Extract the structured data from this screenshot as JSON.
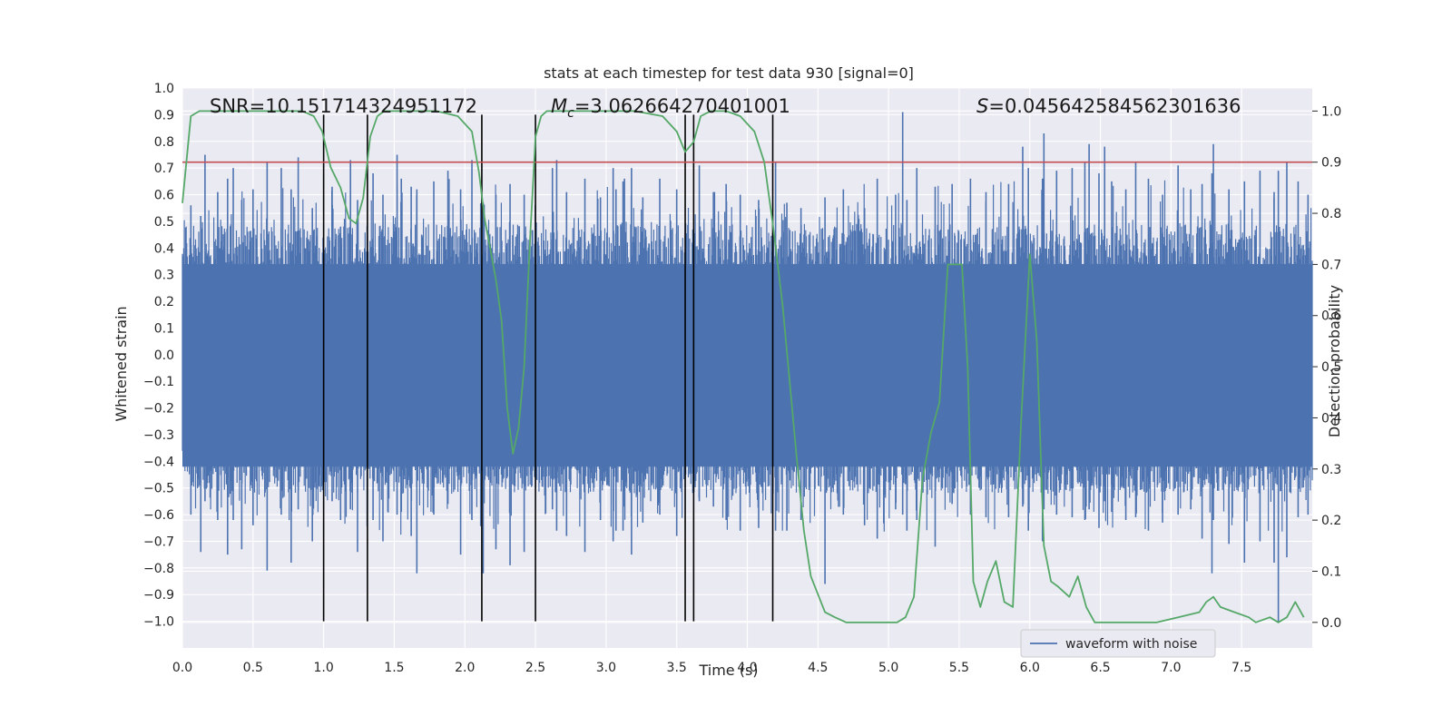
{
  "chart_data": {
    "type": "line",
    "title": "stats at each timestep for test data 930 [signal=0]",
    "xlabel": "Time (s)",
    "ylabel": "Whitened strain",
    "y2label": "Detection probability",
    "xlim": [
      0,
      8
    ],
    "ylim": [
      -1.1,
      1.0
    ],
    "y2lim": [
      -0.05,
      1.045
    ],
    "xticks": [
      "0.0",
      "0.5",
      "1.0",
      "1.5",
      "2.0",
      "2.5",
      "3.0",
      "3.5",
      "4.0",
      "4.5",
      "5.0",
      "5.5",
      "6.0",
      "6.5",
      "7.0",
      "7.5"
    ],
    "yticks": [
      "1.0",
      "0.9",
      "0.8",
      "0.7",
      "0.6",
      "0.5",
      "0.4",
      "0.3",
      "0.2",
      "0.1",
      "0.0",
      "−0.1",
      "−0.2",
      "−0.3",
      "−0.4",
      "−0.5",
      "−0.6",
      "−0.7",
      "−0.8",
      "−0.9",
      "−1.0"
    ],
    "y2ticks": [
      "0.0",
      "0.1",
      "0.2",
      "0.3",
      "0.4",
      "0.5",
      "0.6",
      "0.7",
      "0.8",
      "0.9",
      "1.0"
    ],
    "annotations": {
      "snr": "SNR=10.151714324951172",
      "mc_symbol": "M",
      "mc_sub": "c",
      "mc_value": "=3.062664270401001",
      "s_symbol": "S",
      "s_value": "=0.045642584562301636"
    },
    "threshold": 0.9,
    "vlines": [
      1.0,
      1.31,
      2.12,
      2.5,
      3.56,
      3.62,
      4.18
    ],
    "vline_range": [
      -1.0,
      0.9
    ],
    "series": [
      {
        "name": "waveform with noise",
        "axis": "left",
        "color": "#4c72b0",
        "spikes": [
          [
            0.06,
            0.56,
            -0.6
          ],
          [
            0.13,
            0.52,
            -0.74
          ],
          [
            0.16,
            0.75,
            -0.55
          ],
          [
            0.25,
            0.61,
            -0.62
          ],
          [
            0.32,
            0.66,
            -0.75
          ],
          [
            0.42,
            0.58,
            -0.73
          ],
          [
            0.5,
            0.62,
            -0.64
          ],
          [
            0.6,
            0.72,
            -0.81
          ],
          [
            0.7,
            0.7,
            -0.6
          ],
          [
            0.77,
            0.62,
            -0.78
          ],
          [
            0.82,
            0.74,
            -0.58
          ],
          [
            0.92,
            0.55,
            -0.7
          ],
          [
            1.06,
            0.63,
            -0.55
          ],
          [
            1.12,
            0.48,
            -0.62
          ],
          [
            1.19,
            0.73,
            -0.58
          ],
          [
            1.24,
            0.58,
            -0.74
          ],
          [
            1.35,
            0.68,
            -0.62
          ],
          [
            1.42,
            0.6,
            -0.7
          ],
          [
            1.55,
            0.66,
            -0.59
          ],
          [
            1.62,
            0.63,
            -0.68
          ],
          [
            1.66,
            0.62,
            -0.82
          ],
          [
            1.78,
            0.65,
            -0.6
          ],
          [
            1.88,
            0.69,
            -0.56
          ],
          [
            1.97,
            0.62,
            -0.75
          ],
          [
            2.05,
            0.73,
            -0.62
          ],
          [
            2.13,
            0.57,
            -0.82
          ],
          [
            2.22,
            0.6,
            -0.73
          ],
          [
            2.32,
            0.64,
            -0.79
          ],
          [
            2.42,
            0.6,
            -0.74
          ],
          [
            2.62,
            0.7,
            -0.58
          ],
          [
            2.72,
            0.61,
            -0.68
          ],
          [
            2.85,
            0.66,
            -0.74
          ],
          [
            2.96,
            0.59,
            -0.62
          ],
          [
            3.07,
            0.62,
            -0.66
          ],
          [
            3.18,
            0.7,
            -0.75
          ],
          [
            3.26,
            0.59,
            -0.63
          ],
          [
            3.38,
            0.66,
            -0.6
          ],
          [
            3.5,
            0.62,
            -0.68
          ],
          [
            3.66,
            0.71,
            -0.55
          ],
          [
            3.76,
            0.61,
            -0.57
          ],
          [
            3.85,
            0.64,
            -0.62
          ],
          [
            3.95,
            0.6,
            -0.66
          ],
          [
            4.08,
            0.58,
            -0.65
          ],
          [
            4.28,
            0.57,
            -0.66
          ],
          [
            4.38,
            0.55,
            -0.62
          ],
          [
            4.55,
            0.59,
            -0.86
          ],
          [
            4.68,
            0.62,
            -0.6
          ],
          [
            4.83,
            0.55,
            -0.64
          ],
          [
            4.92,
            0.66,
            -0.69
          ],
          [
            5.05,
            0.6,
            -0.58
          ],
          [
            5.13,
            0.58,
            -0.66
          ],
          [
            5.2,
            0.7,
            -0.62
          ],
          [
            5.33,
            0.63,
            -0.72
          ],
          [
            5.45,
            0.64,
            -0.56
          ],
          [
            5.58,
            0.66,
            -0.6
          ],
          [
            5.69,
            0.61,
            -0.61
          ],
          [
            5.85,
            0.64,
            -0.61
          ],
          [
            5.99,
            0.7,
            -0.66
          ],
          [
            6.09,
            0.66,
            -0.7
          ],
          [
            6.19,
            0.69,
            -0.6
          ],
          [
            6.3,
            0.7,
            -0.61
          ],
          [
            6.39,
            0.72,
            -0.62
          ],
          [
            6.49,
            0.68,
            -0.65
          ],
          [
            6.58,
            0.65,
            -0.59
          ],
          [
            6.68,
            0.62,
            -0.62
          ],
          [
            6.84,
            0.66,
            -0.66
          ],
          [
            6.94,
            0.6,
            -0.63
          ],
          [
            7.05,
            0.71,
            -0.6
          ],
          [
            7.14,
            0.62,
            -0.58
          ],
          [
            7.22,
            0.64,
            -0.69
          ],
          [
            7.29,
            0.68,
            -0.82
          ],
          [
            7.41,
            0.62,
            -0.71
          ],
          [
            7.52,
            0.65,
            -0.78
          ],
          [
            7.63,
            0.69,
            -0.7
          ],
          [
            7.73,
            0.61,
            -0.78
          ],
          [
            7.76,
            0.69,
            -1.0
          ],
          [
            7.82,
            0.72,
            -0.76
          ],
          [
            7.9,
            0.65,
            -0.61
          ],
          [
            7.97,
            0.6,
            -0.6
          ],
          [
            3.13,
            0.66,
            -0.57
          ],
          [
            3.05,
            0.7,
            -0.7
          ],
          [
            3.12,
            0.65,
            -0.66
          ],
          [
            5.1,
            0.91,
            -0.6
          ],
          [
            6.1,
            0.83,
            -0.58
          ],
          [
            7.3,
            0.79,
            -0.62
          ],
          [
            5.95,
            0.78,
            -0.57
          ],
          [
            6.42,
            0.79,
            -0.58
          ],
          [
            6.53,
            0.78,
            -0.55
          ],
          [
            4.2,
            0.72,
            -0.66
          ],
          [
            2.65,
            0.73,
            -0.66
          ],
          [
            1.52,
            0.75,
            -0.6
          ],
          [
            0.36,
            0.7,
            -0.62
          ],
          [
            6.75,
            0.72,
            -0.61
          ]
        ]
      },
      {
        "name": "detection probability",
        "axis": "right",
        "color": "#55a868",
        "x": [
          0.0,
          0.06,
          0.12,
          0.18,
          0.25,
          0.5,
          0.7,
          0.85,
          0.93,
          0.99,
          1.05,
          1.12,
          1.18,
          1.23,
          1.28,
          1.33,
          1.38,
          1.43,
          1.5,
          1.65,
          1.8,
          1.95,
          2.05,
          2.1,
          2.14,
          2.18,
          2.22,
          2.26,
          2.3,
          2.34,
          2.38,
          2.42,
          2.46,
          2.5,
          2.54,
          2.58,
          2.65,
          2.8,
          3.0,
          3.2,
          3.4,
          3.5,
          3.56,
          3.62,
          3.67,
          3.74,
          3.85,
          3.95,
          4.05,
          4.12,
          4.18,
          4.25,
          4.3,
          4.35,
          4.4,
          4.45,
          4.55,
          4.62,
          4.7,
          4.8,
          4.9,
          5.0,
          5.06,
          5.12,
          5.18,
          5.24,
          5.3,
          5.36,
          5.42,
          5.47,
          5.52,
          5.56,
          5.6,
          5.65,
          5.7,
          5.76,
          5.82,
          5.88,
          5.94,
          6.0,
          6.05,
          6.1,
          6.15,
          6.2,
          6.28,
          6.34,
          6.4,
          6.46,
          6.52,
          6.58,
          6.65,
          6.75,
          6.9,
          7.05,
          7.2,
          7.25,
          7.3,
          7.35,
          7.45,
          7.55,
          7.6,
          7.7,
          7.76,
          7.82,
          7.88,
          7.94
        ],
        "y": [
          0.82,
          0.99,
          1.0,
          1.0,
          1.0,
          1.0,
          1.0,
          1.0,
          0.99,
          0.96,
          0.89,
          0.85,
          0.79,
          0.78,
          0.83,
          0.95,
          0.99,
          1.0,
          1.0,
          1.0,
          1.0,
          0.99,
          0.96,
          0.88,
          0.79,
          0.73,
          0.67,
          0.59,
          0.42,
          0.33,
          0.38,
          0.5,
          0.74,
          0.95,
          0.99,
          1.0,
          1.0,
          1.0,
          1.0,
          1.0,
          0.99,
          0.96,
          0.92,
          0.94,
          0.99,
          1.0,
          1.0,
          0.99,
          0.96,
          0.9,
          0.78,
          0.62,
          0.47,
          0.32,
          0.18,
          0.09,
          0.02,
          0.01,
          0.0,
          0.0,
          0.0,
          0.0,
          0.0,
          0.01,
          0.05,
          0.28,
          0.37,
          0.43,
          0.7,
          0.7,
          0.7,
          0.5,
          0.08,
          0.03,
          0.08,
          0.12,
          0.04,
          0.03,
          0.4,
          0.72,
          0.55,
          0.15,
          0.08,
          0.07,
          0.05,
          0.09,
          0.03,
          0.0,
          0.0,
          0.0,
          0.0,
          0.0,
          0.0,
          0.01,
          0.02,
          0.04,
          0.05,
          0.03,
          0.02,
          0.01,
          0.0,
          0.01,
          0.0,
          0.01,
          0.04,
          0.01
        ]
      }
    ]
  },
  "legend": {
    "label": "waveform with noise"
  },
  "colors": {
    "background": "#eaeaf2",
    "grid": "#ffffff",
    "threshold": "#c44e52",
    "vline": "#000000"
  }
}
